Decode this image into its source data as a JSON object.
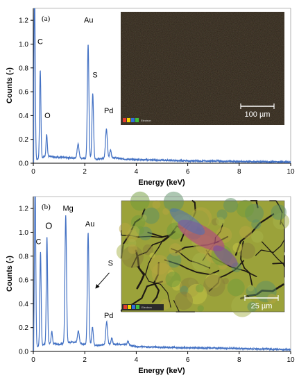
{
  "chart_data": [
    {
      "type": "line",
      "panel_label": "(a)",
      "xlabel": "Energy (keV)",
      "ylabel": "Counts (-)",
      "xlim": [
        0,
        10
      ],
      "ylim": [
        0,
        1.3
      ],
      "xticks": [
        "0",
        "2",
        "4",
        "6",
        "8",
        "10"
      ],
      "yticks": [
        "0.0",
        "0.2",
        "0.4",
        "0.6",
        "0.8",
        "1.0",
        "1.2"
      ],
      "grid": false,
      "series_color": "#4472c4",
      "spectrum": {
        "baseline": [
          [
            0.12,
            0.03
          ],
          [
            0.5,
            0.06
          ],
          [
            1.0,
            0.05
          ],
          [
            1.5,
            0.045
          ],
          [
            2.0,
            0.04
          ],
          [
            2.5,
            0.035
          ],
          [
            3.0,
            0.05
          ],
          [
            3.5,
            0.035
          ],
          [
            4.0,
            0.03
          ],
          [
            5.0,
            0.025
          ],
          [
            6.0,
            0.02
          ],
          [
            7.0,
            0.018
          ],
          [
            8.0,
            0.015
          ],
          [
            9.0,
            0.012
          ],
          [
            10.0,
            0.01
          ]
        ],
        "peaks": [
          {
            "center": 0.05,
            "height": 1.4,
            "width": 0.025
          },
          {
            "center": 0.27,
            "height": 0.74,
            "width": 0.025
          },
          {
            "center": 0.52,
            "height": 0.18,
            "width": 0.025
          },
          {
            "center": 1.74,
            "height": 0.12,
            "width": 0.035
          },
          {
            "center": 2.13,
            "height": 0.96,
            "width": 0.03
          },
          {
            "center": 2.31,
            "height": 0.55,
            "width": 0.03
          },
          {
            "center": 2.84,
            "height": 0.24,
            "width": 0.035
          },
          {
            "center": 3.0,
            "height": 0.06,
            "width": 0.03
          }
        ]
      },
      "annotations": [
        {
          "text": "C",
          "x": 0.27,
          "y": 1.0
        },
        {
          "text": "O",
          "x": 0.55,
          "y": 0.38
        },
        {
          "text": "Au",
          "x": 2.15,
          "y": 1.18
        },
        {
          "text": "S",
          "x": 2.4,
          "y": 0.72
        },
        {
          "text": "Pd",
          "x": 2.93,
          "y": 0.42
        }
      ],
      "inset": {
        "type": "element-map",
        "tint": "#2d2418",
        "scale_bar": "100 µm",
        "legend_colors": [
          "#e33b2e",
          "#f5d400",
          "#2f6fdc",
          "#3fbf3f"
        ],
        "legend_label": "Electron"
      }
    },
    {
      "type": "line",
      "panel_label": "(b)",
      "xlabel": "Energy (keV)",
      "ylabel": "Counts (-)",
      "xlim": [
        0,
        10
      ],
      "ylim": [
        0,
        1.3
      ],
      "xticks": [
        "0",
        "2",
        "4",
        "6",
        "8",
        "10"
      ],
      "yticks": [
        "0.0",
        "0.2",
        "0.4",
        "0.6",
        "0.8",
        "1.0",
        "1.2"
      ],
      "grid": false,
      "series_color": "#4472c4",
      "spectrum": {
        "baseline": [
          [
            0.1,
            0.04
          ],
          [
            0.6,
            0.07
          ],
          [
            1.0,
            0.06
          ],
          [
            1.5,
            0.08
          ],
          [
            2.0,
            0.06
          ],
          [
            2.5,
            0.05
          ],
          [
            3.0,
            0.06
          ],
          [
            3.6,
            0.06
          ],
          [
            4.0,
            0.04
          ],
          [
            5.0,
            0.035
          ],
          [
            6.0,
            0.03
          ],
          [
            7.0,
            0.028
          ],
          [
            8.0,
            0.025
          ],
          [
            9.0,
            0.02
          ],
          [
            10.0,
            0.015
          ]
        ],
        "peaks": [
          {
            "center": 0.07,
            "height": 1.4,
            "width": 0.025
          },
          {
            "center": 0.28,
            "height": 0.78,
            "width": 0.025
          },
          {
            "center": 0.53,
            "height": 0.9,
            "width": 0.025
          },
          {
            "center": 0.72,
            "height": 0.1,
            "width": 0.025
          },
          {
            "center": 1.26,
            "height": 1.07,
            "width": 0.03
          },
          {
            "center": 1.75,
            "height": 0.1,
            "width": 0.035
          },
          {
            "center": 2.13,
            "height": 0.94,
            "width": 0.03
          },
          {
            "center": 2.3,
            "height": 0.15,
            "width": 0.03
          },
          {
            "center": 2.85,
            "height": 0.19,
            "width": 0.035
          },
          {
            "center": 3.05,
            "height": 0.05,
            "width": 0.03
          },
          {
            "center": 3.68,
            "height": 0.03,
            "width": 0.03
          }
        ]
      },
      "annotations": [
        {
          "text": "C",
          "x": 0.2,
          "y": 0.9,
          "size": "normal"
        },
        {
          "text": "O",
          "x": 0.6,
          "y": 1.03,
          "size": "big"
        },
        {
          "text": "Mg",
          "x": 1.35,
          "y": 1.18,
          "size": "normal"
        },
        {
          "text": "Au",
          "x": 2.2,
          "y": 1.05,
          "size": "normal"
        },
        {
          "text": "S",
          "x": 3.0,
          "y": 0.72,
          "size": "normal"
        },
        {
          "text": "Pd",
          "x": 2.93,
          "y": 0.28,
          "size": "normal"
        }
      ],
      "arrow": {
        "from": [
          2.95,
          0.66
        ],
        "to": [
          2.42,
          0.53
        ]
      },
      "inset": {
        "type": "element-map",
        "tint": "#9ba23a",
        "scale_bar": "25 µm",
        "legend_colors": [
          "#e33b2e",
          "#f5d400",
          "#2f6fdc",
          "#3fbf3f"
        ],
        "legend_label": "Electron"
      }
    }
  ]
}
